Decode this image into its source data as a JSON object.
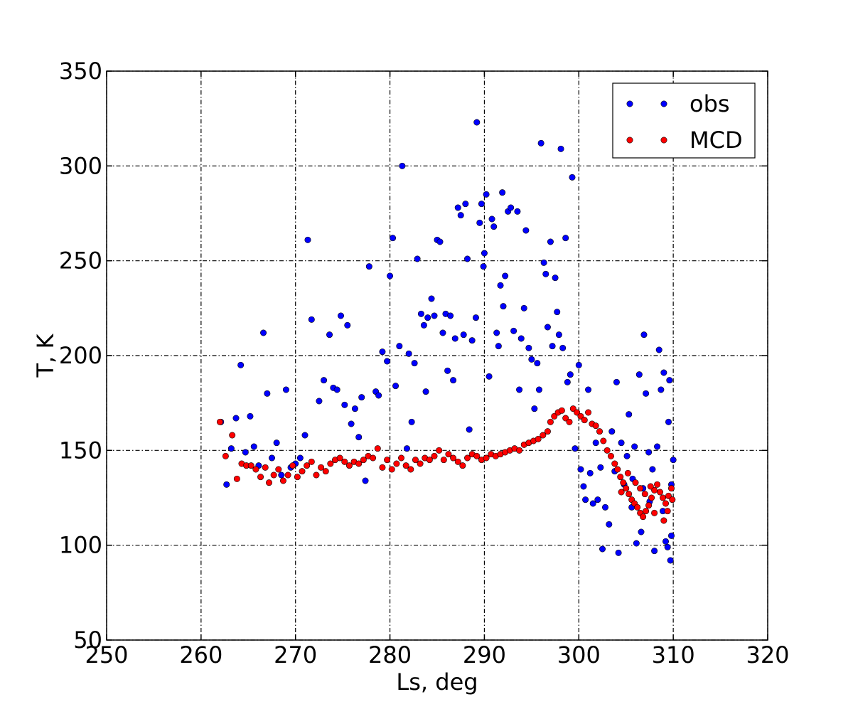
{
  "chart_data": {
    "type": "scatter",
    "xlabel": "Ls, deg",
    "ylabel": "T, K",
    "xlim": [
      250,
      320
    ],
    "ylim": [
      50,
      350
    ],
    "xticks": [
      250,
      260,
      270,
      280,
      290,
      300,
      310,
      320
    ],
    "yticks": [
      50,
      100,
      150,
      200,
      250,
      300,
      350
    ],
    "grid": true,
    "legend": "upper right",
    "series": [
      {
        "name": "obs",
        "color": "#0000ff",
        "x": [
          262.1,
          262.7,
          263.2,
          263.7,
          264.2,
          264.7,
          265.2,
          265.6,
          266.1,
          266.6,
          267.0,
          267.5,
          268.0,
          268.5,
          269.0,
          269.5,
          270.0,
          270.5,
          271.0,
          271.3,
          271.7,
          272.5,
          273.0,
          273.6,
          274.0,
          274.4,
          274.8,
          275.2,
          275.5,
          275.9,
          276.3,
          276.7,
          277.0,
          277.4,
          277.8,
          278.5,
          278.8,
          279.2,
          279.7,
          280.0,
          280.3,
          280.6,
          281.0,
          281.3,
          281.8,
          282.0,
          282.3,
          282.6,
          282.9,
          283.3,
          283.6,
          283.8,
          284.0,
          284.4,
          284.7,
          285.0,
          285.3,
          285.6,
          285.9,
          286.1,
          286.4,
          286.7,
          286.9,
          287.2,
          287.5,
          287.8,
          288.0,
          288.2,
          288.4,
          288.7,
          289.1,
          289.2,
          289.5,
          289.7,
          289.9,
          290.0,
          290.2,
          290.5,
          290.8,
          291.0,
          291.3,
          291.5,
          291.7,
          291.9,
          292.0,
          292.2,
          292.5,
          292.8,
          293.1,
          293.5,
          293.7,
          293.9,
          294.2,
          294.4,
          294.7,
          295.0,
          295.3,
          295.6,
          295.8,
          296.0,
          296.3,
          296.5,
          296.7,
          297.0,
          297.2,
          297.5,
          297.7,
          297.9,
          298.1,
          298.3,
          298.6,
          298.8,
          299.1,
          299.3,
          299.6,
          300.0,
          300.2,
          300.5,
          300.7,
          301.0,
          301.2,
          301.5,
          301.8,
          302.0,
          302.3,
          302.5,
          302.8,
          303.2,
          303.5,
          303.8,
          304.0,
          304.2,
          304.5,
          304.8,
          305.1,
          305.3,
          305.6,
          305.9,
          306.1,
          306.4,
          306.6,
          306.9,
          307.1,
          307.4,
          307.8,
          308.0,
          308.3,
          308.5,
          308.7,
          309.0,
          309.2,
          309.4,
          309.6,
          309.7,
          309.8,
          310.0,
          309.5,
          307.5,
          306.8,
          305.7,
          308.9,
          309.8
        ],
        "values": [
          165,
          132,
          151,
          167,
          195,
          149,
          168,
          152,
          142,
          212,
          180,
          146,
          154,
          137,
          182,
          141,
          143,
          146,
          158,
          261,
          219,
          176,
          187,
          211,
          183,
          182,
          221,
          174,
          216,
          164,
          172,
          157,
          178,
          134,
          247,
          181,
          179,
          202,
          197,
          242,
          262,
          184,
          205,
          300,
          151,
          201,
          165,
          196,
          251,
          222,
          216,
          181,
          220,
          230,
          221,
          261,
          260,
          212,
          222,
          192,
          221,
          187,
          209,
          278,
          274,
          211,
          280,
          251,
          161,
          208,
          220,
          323,
          270,
          280,
          247,
          254,
          285,
          189,
          272,
          268,
          212,
          205,
          237,
          286,
          226,
          242,
          276,
          278,
          213,
          276,
          182,
          209,
          225,
          266,
          204,
          198,
          172,
          196,
          182,
          312,
          249,
          243,
          215,
          260,
          205,
          241,
          223,
          211,
          309,
          204,
          262,
          186,
          190,
          294,
          151,
          195,
          140,
          131,
          124,
          182,
          138,
          122,
          154,
          124,
          141,
          98,
          120,
          111,
          160,
          139,
          186,
          96,
          154,
          132,
          147,
          169,
          120,
          152,
          101,
          190,
          107,
          211,
          180,
          149,
          140,
          97,
          152,
          203,
          182,
          191,
          102,
          99,
          187,
          92,
          105,
          145,
          165,
          123,
          130,
          135,
          118,
          132
        ]
      },
      {
        "name": "MCD",
        "color": "#ff0000",
        "x": [
          262.0,
          262.6,
          263.3,
          263.8,
          264.3,
          264.8,
          265.3,
          265.8,
          266.3,
          266.8,
          267.2,
          267.7,
          268.2,
          268.7,
          269.2,
          269.7,
          270.2,
          270.7,
          271.2,
          271.7,
          272.2,
          272.7,
          273.2,
          273.7,
          274.2,
          274.7,
          275.2,
          275.7,
          276.2,
          276.7,
          277.2,
          277.7,
          278.2,
          278.7,
          279.2,
          279.7,
          280.2,
          280.7,
          281.2,
          281.7,
          282.2,
          282.7,
          283.2,
          283.7,
          284.2,
          284.7,
          285.2,
          285.7,
          286.2,
          286.7,
          287.2,
          287.7,
          288.2,
          288.7,
          289.2,
          289.7,
          290.2,
          290.7,
          291.2,
          291.7,
          292.2,
          292.7,
          293.2,
          293.7,
          294.2,
          294.7,
          295.2,
          295.7,
          296.2,
          296.7,
          297.0,
          297.4,
          297.8,
          298.2,
          298.6,
          299.0,
          299.4,
          299.8,
          300.2,
          300.6,
          301.0,
          301.4,
          301.8,
          302.2,
          302.6,
          303.0,
          303.4,
          303.8,
          304.1,
          304.4,
          304.7,
          305.0,
          305.3,
          305.6,
          305.9,
          306.2,
          306.5,
          306.8,
          307.1,
          307.4,
          307.7,
          308.0,
          308.3,
          308.6,
          308.9,
          309.2,
          309.5,
          309.8,
          309.9,
          304.5,
          305.2,
          306.0,
          307.0,
          308.0,
          309.0,
          309.4,
          306.5,
          307.6
        ],
        "values": [
          165,
          147,
          158,
          135,
          143,
          142,
          142,
          140,
          136,
          141,
          133,
          137,
          140,
          134,
          137,
          142,
          136,
          139,
          142,
          144,
          137,
          141,
          139,
          143,
          145,
          146,
          144,
          142,
          144,
          143,
          145,
          147,
          146,
          151,
          141,
          145,
          140,
          143,
          146,
          142,
          140,
          145,
          143,
          146,
          145,
          147,
          150,
          145,
          148,
          146,
          144,
          142,
          146,
          148,
          147,
          145,
          146,
          148,
          147,
          148,
          149,
          150,
          151,
          150,
          153,
          154,
          155,
          156,
          158,
          160,
          165,
          168,
          170,
          171,
          167,
          165,
          172,
          170,
          168,
          166,
          170,
          164,
          163,
          160,
          155,
          150,
          147,
          143,
          140,
          136,
          133,
          130,
          127,
          124,
          122,
          120,
          117,
          115,
          118,
          121,
          125,
          129,
          132,
          128,
          125,
          122,
          126,
          130,
          124,
          128,
          138,
          133,
          127,
          117,
          113,
          118,
          130,
          131
        ]
      }
    ]
  }
}
